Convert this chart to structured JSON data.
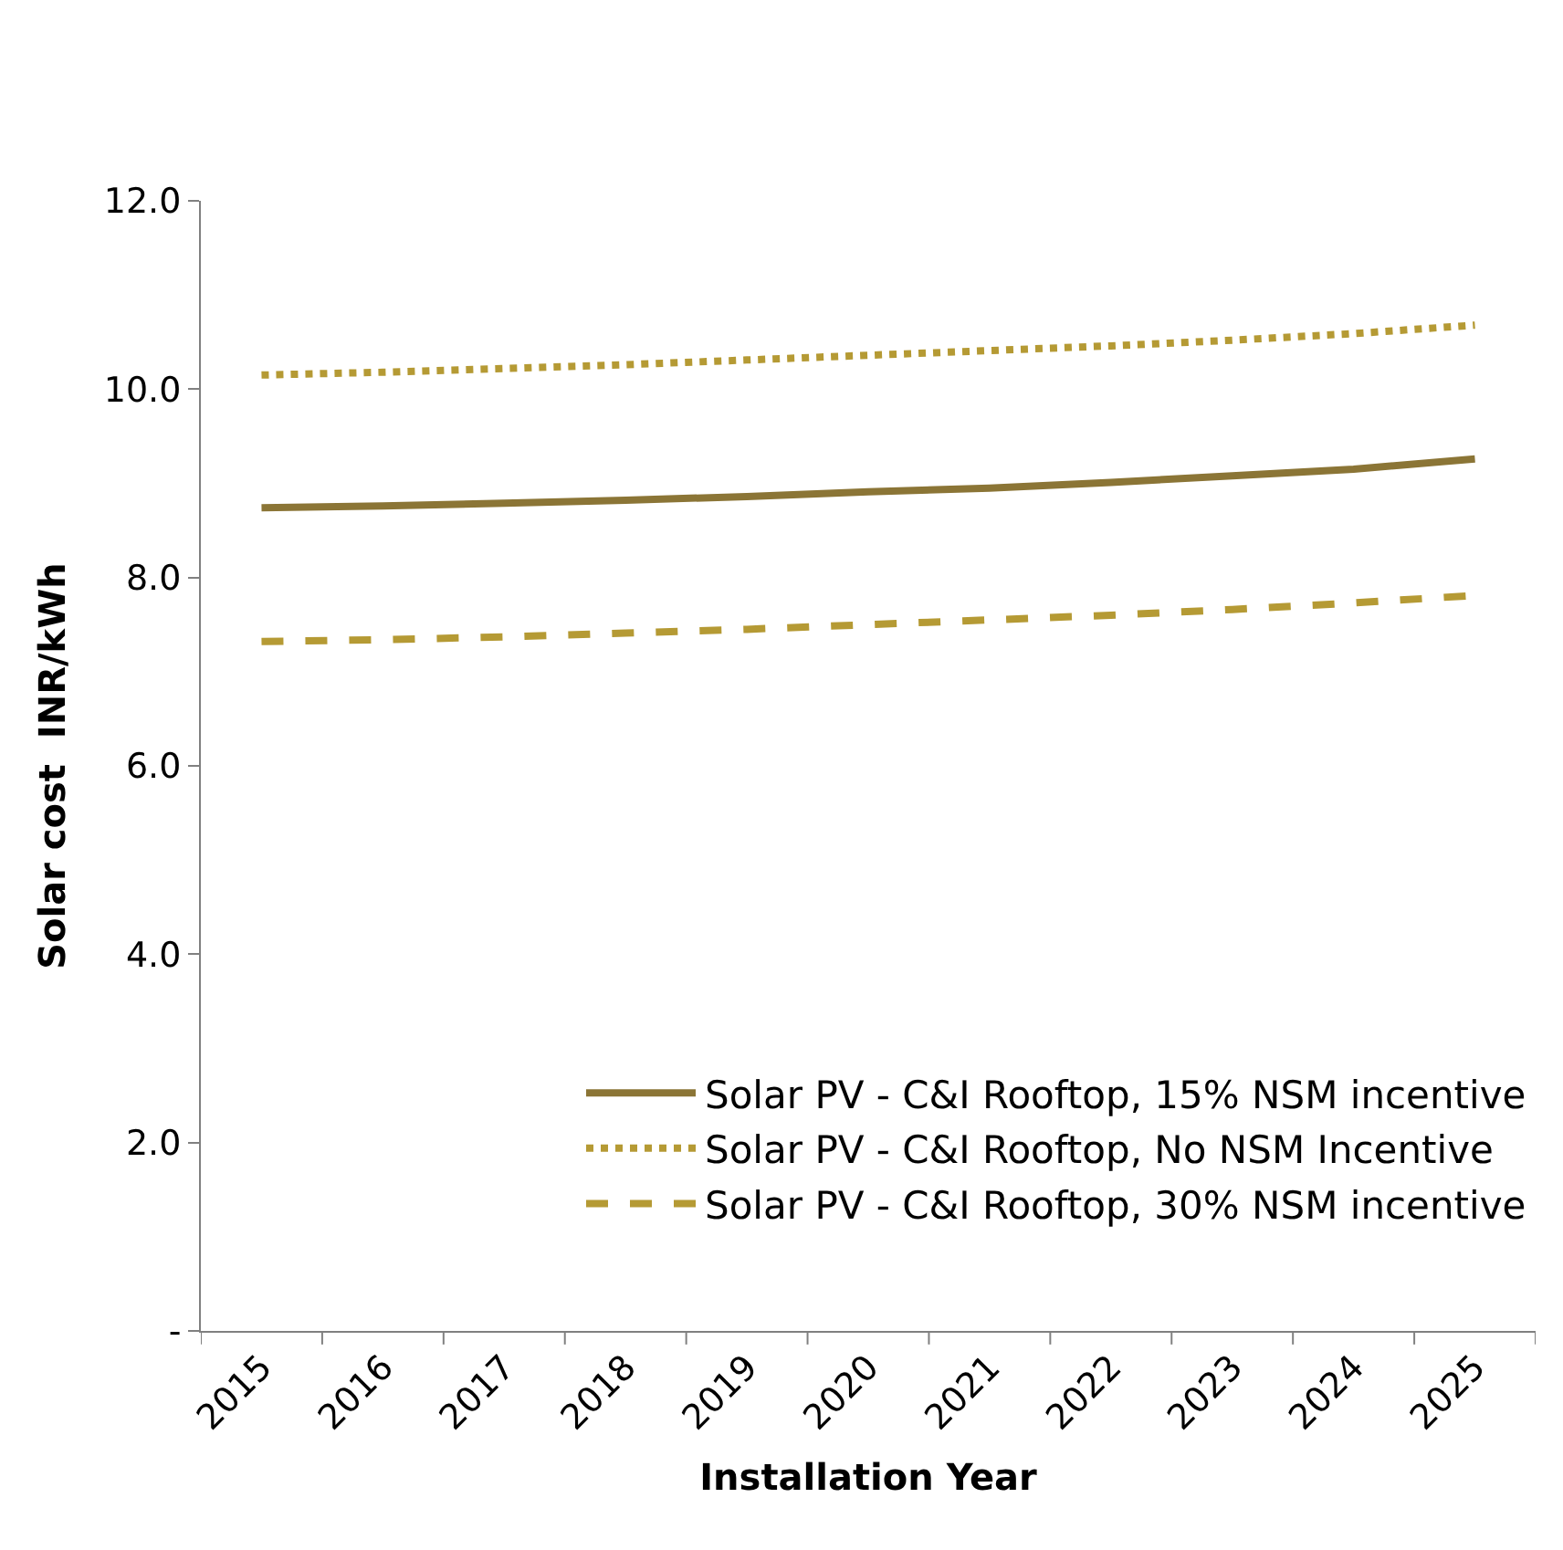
{
  "chart_data": {
    "type": "line",
    "xlabel": "Installation Year",
    "ylabel": "Solar cost  INR/kWh",
    "categories": [
      "2015",
      "2016",
      "2017",
      "2018",
      "2019",
      "2020",
      "2021",
      "2022",
      "2023",
      "2024",
      "2025"
    ],
    "series": [
      {
        "name": "Solar PV - C&I Rooftop, 15% NSM incentive",
        "color": "#8b7536",
        "line_style": "solid",
        "values": [
          8.74,
          8.76,
          8.79,
          8.82,
          8.86,
          8.91,
          8.95,
          9.01,
          9.08,
          9.15,
          9.26
        ]
      },
      {
        "name": "Solar PV - C&I Rooftop, No NSM Incentive",
        "color": "#b59a34",
        "line_style": "dotted",
        "values": [
          10.15,
          10.18,
          10.22,
          10.26,
          10.31,
          10.36,
          10.41,
          10.46,
          10.52,
          10.59,
          10.68
        ]
      },
      {
        "name": "Solar PV - C&I Rooftop, 30% NSM incentive",
        "color": "#b59a34",
        "line_style": "dashed",
        "values": [
          7.32,
          7.34,
          7.37,
          7.41,
          7.45,
          7.5,
          7.55,
          7.6,
          7.66,
          7.73,
          7.81
        ]
      }
    ],
    "ylim": [
      0,
      12
    ],
    "yticks": [
      {
        "value": 0,
        "label": "-"
      },
      {
        "value": 2,
        "label": "2.0"
      },
      {
        "value": 4,
        "label": "4.0"
      },
      {
        "value": 6,
        "label": "6.0"
      },
      {
        "value": 8,
        "label": "8.0"
      },
      {
        "value": 10,
        "label": "10.0"
      },
      {
        "value": 12,
        "label": "12.0"
      }
    ],
    "legend": "bottom right",
    "marker": "none"
  }
}
